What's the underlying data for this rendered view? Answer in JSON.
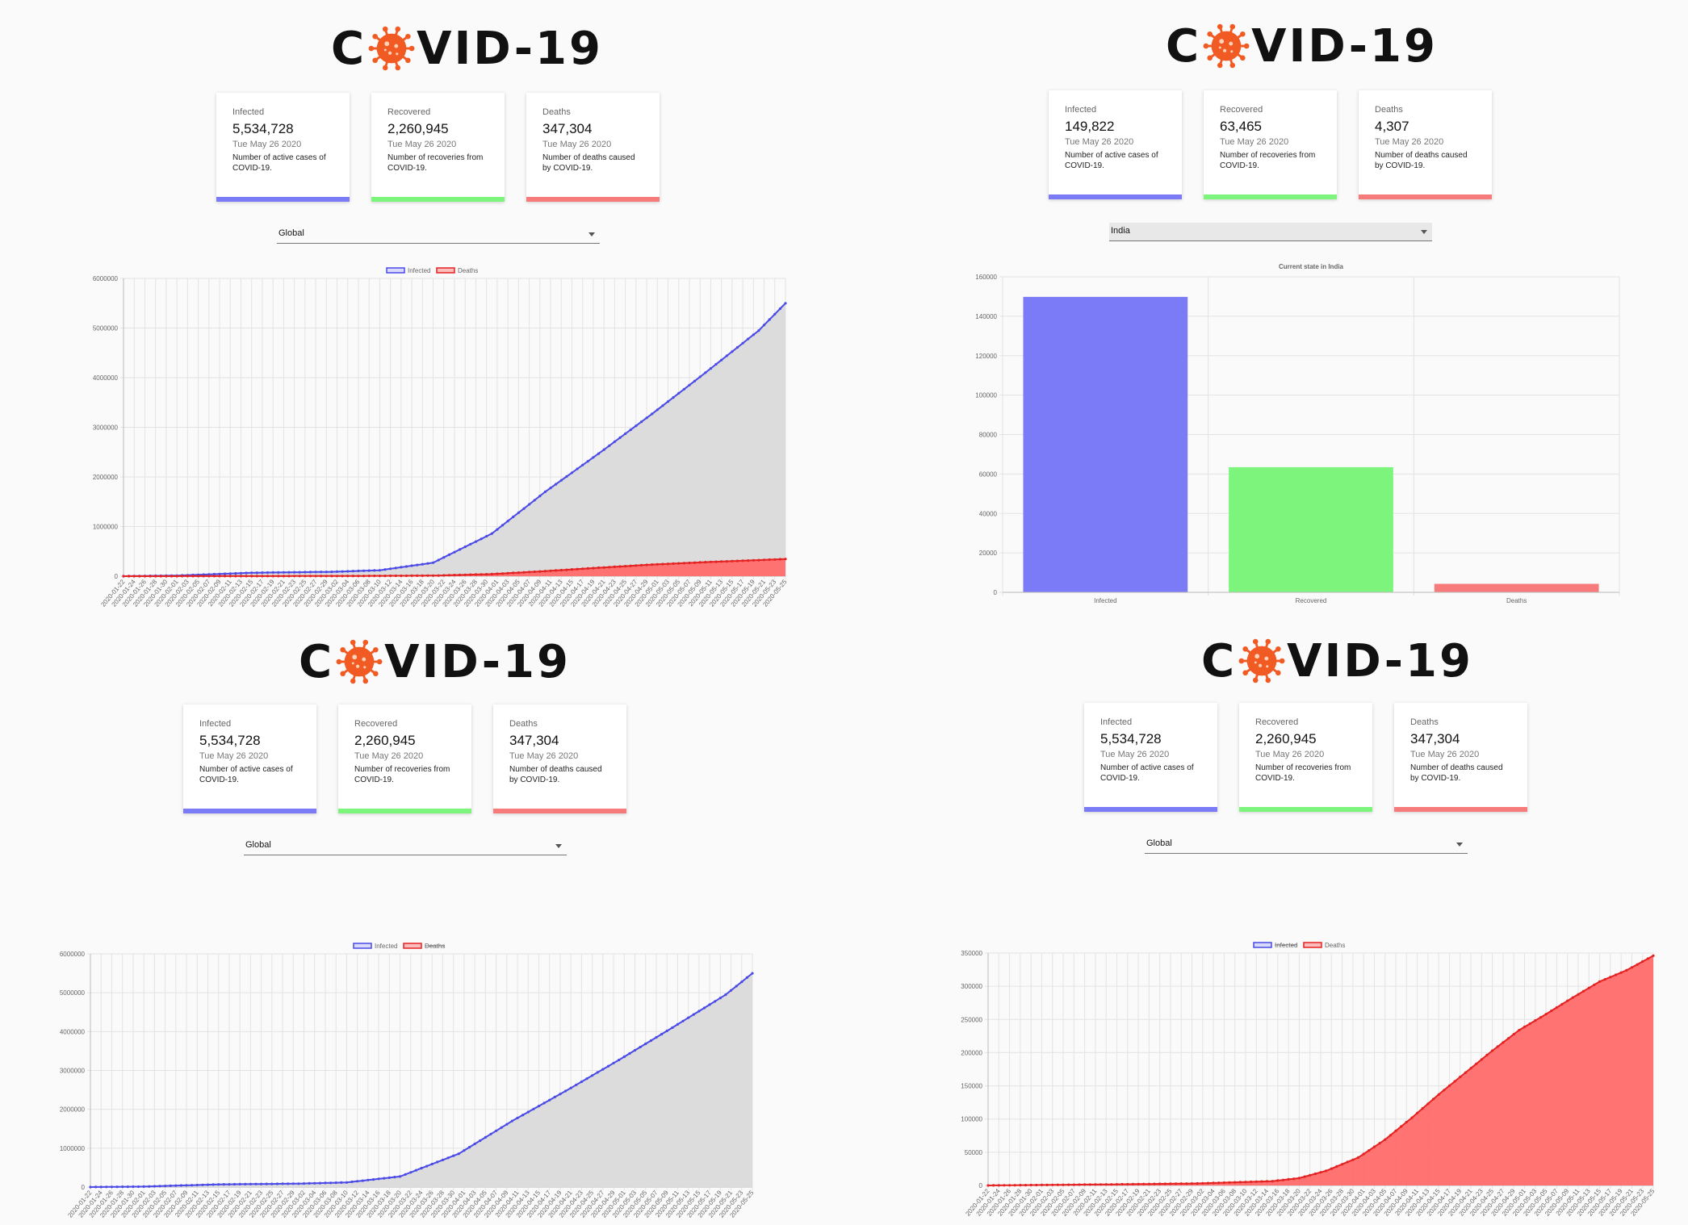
{
  "logo": {
    "c": "C",
    "text": "VID-19",
    "icon": "coronavirus-icon"
  },
  "colors": {
    "infected": "#7b7bf7",
    "recovered": "#7df57d",
    "deaths": "#f77b7b",
    "infected_line": "#4a4ae8",
    "deaths_line": "#e52222",
    "infected_fill": "#dcdcdc",
    "deaths_fill": "#ff6b6b"
  },
  "global_cards": [
    {
      "title": "Infected",
      "value": "5,534,728",
      "date": "Tue May 26 2020",
      "desc": "Number of active cases of COVID-19."
    },
    {
      "title": "Recovered",
      "value": "2,260,945",
      "date": "Tue May 26 2020",
      "desc": "Number of recoveries from COVID-19."
    },
    {
      "title": "Deaths",
      "value": "347,304",
      "date": "Tue May 26 2020",
      "desc": "Number of deaths caused by COVID-19."
    }
  ],
  "india_cards": [
    {
      "title": "Infected",
      "value": "149,822",
      "date": "Tue May 26 2020",
      "desc": "Number of active cases of COVID-19."
    },
    {
      "title": "Recovered",
      "value": "63,465",
      "date": "Tue May 26 2020",
      "desc": "Number of recoveries from COVID-19."
    },
    {
      "title": "Deaths",
      "value": "4,307",
      "date": "Tue May 26 2020",
      "desc": "Number of deaths caused by COVID-19."
    }
  ],
  "country_select": {
    "global": "Global",
    "india": "India"
  },
  "legend": {
    "infected": "Infected",
    "deaths": "Deaths"
  },
  "chart_data": [
    {
      "type": "line",
      "panel": "top-left",
      "series": [
        {
          "name": "Infected",
          "visible": true,
          "start": "2020-01-22",
          "end": "2020-05-25",
          "points": [
            [
              "2020-01-22",
              555
            ],
            [
              "2020-02-01",
              12000
            ],
            [
              "2020-02-15",
              69000
            ],
            [
              "2020-03-01",
              88000
            ],
            [
              "2020-03-10",
              119000
            ],
            [
              "2020-03-20",
              272000
            ],
            [
              "2020-03-31",
              858000
            ],
            [
              "2020-04-10",
              1700000
            ],
            [
              "2020-04-20",
              2470000
            ],
            [
              "2020-04-30",
              3270000
            ],
            [
              "2020-05-10",
              4100000
            ],
            [
              "2020-05-20",
              4950000
            ],
            [
              "2020-05-25",
              5500000
            ]
          ]
        },
        {
          "name": "Deaths",
          "visible": true,
          "start": "2020-01-22",
          "end": "2020-05-25",
          "points": [
            [
              "2020-01-22",
              17
            ],
            [
              "2020-03-01",
              3000
            ],
            [
              "2020-03-20",
              11000
            ],
            [
              "2020-03-31",
              42000
            ],
            [
              "2020-04-10",
              102000
            ],
            [
              "2020-04-20",
              170000
            ],
            [
              "2020-04-30",
              234000
            ],
            [
              "2020-05-10",
              283000
            ],
            [
              "2020-05-20",
              324000
            ],
            [
              "2020-05-25",
              346000
            ]
          ]
        }
      ],
      "ylim": [
        0,
        6000000
      ],
      "yticks": [
        "0",
        "1000000",
        "2000000",
        "3000000",
        "4000000",
        "5000000",
        "6000000"
      ],
      "xtick_start": "2020-01-22",
      "xtick_step_days": 2,
      "grid": true,
      "legend": "top"
    },
    {
      "type": "bar",
      "panel": "top-right",
      "title": "Current state in India",
      "categories": [
        "Infected",
        "Recovered",
        "Deaths"
      ],
      "values": [
        149822,
        63465,
        4307
      ],
      "ylim": [
        0,
        160000
      ],
      "yticks": [
        "0",
        "20000",
        "40000",
        "60000",
        "80000",
        "100000",
        "120000",
        "140000",
        "160000"
      ],
      "grid": true
    },
    {
      "type": "line",
      "panel": "bottom-left",
      "series": [
        {
          "name": "Infected",
          "visible": true,
          "start": "2020-01-22",
          "end": "2020-05-25",
          "points": [
            [
              "2020-01-22",
              555
            ],
            [
              "2020-02-01",
              12000
            ],
            [
              "2020-02-15",
              69000
            ],
            [
              "2020-03-01",
              88000
            ],
            [
              "2020-03-10",
              119000
            ],
            [
              "2020-03-20",
              272000
            ],
            [
              "2020-03-31",
              858000
            ],
            [
              "2020-04-10",
              1700000
            ],
            [
              "2020-04-20",
              2470000
            ],
            [
              "2020-04-30",
              3270000
            ],
            [
              "2020-05-10",
              4100000
            ],
            [
              "2020-05-20",
              4950000
            ],
            [
              "2020-05-25",
              5500000
            ]
          ]
        },
        {
          "name": "Deaths",
          "visible": false
        }
      ],
      "ylim": [
        0,
        6000000
      ],
      "yticks": [
        "0",
        "1000000",
        "2000000",
        "3000000",
        "4000000",
        "5000000",
        "6000000"
      ],
      "xtick_start": "2020-01-22",
      "xtick_step_days": 2,
      "grid": true,
      "legend": "top"
    },
    {
      "type": "area",
      "panel": "bottom-right",
      "series": [
        {
          "name": "Infected",
          "visible": false
        },
        {
          "name": "Deaths",
          "visible": true,
          "start": "2020-01-22",
          "end": "2020-05-25",
          "points": [
            [
              "2020-01-22",
              17
            ],
            [
              "2020-02-15",
              1700
            ],
            [
              "2020-03-01",
              3000
            ],
            [
              "2020-03-15",
              6500
            ],
            [
              "2020-03-20",
              11000
            ],
            [
              "2020-03-25",
              22000
            ],
            [
              "2020-03-31",
              42000
            ],
            [
              "2020-04-05",
              69000
            ],
            [
              "2020-04-10",
              102000
            ],
            [
              "2020-04-15",
              137000
            ],
            [
              "2020-04-20",
              170000
            ],
            [
              "2020-04-25",
              203000
            ],
            [
              "2020-04-30",
              234000
            ],
            [
              "2020-05-05",
              258000
            ],
            [
              "2020-05-10",
              283000
            ],
            [
              "2020-05-15",
              307000
            ],
            [
              "2020-05-20",
              324000
            ],
            [
              "2020-05-25",
              346000
            ]
          ]
        }
      ],
      "ylim": [
        0,
        350000
      ],
      "yticks": [
        "0",
        "50000",
        "100000",
        "150000",
        "200000",
        "250000",
        "300000",
        "350000"
      ],
      "xtick_start": "2020-01-22",
      "xtick_step_days": 2,
      "grid": true,
      "legend": "top"
    }
  ]
}
